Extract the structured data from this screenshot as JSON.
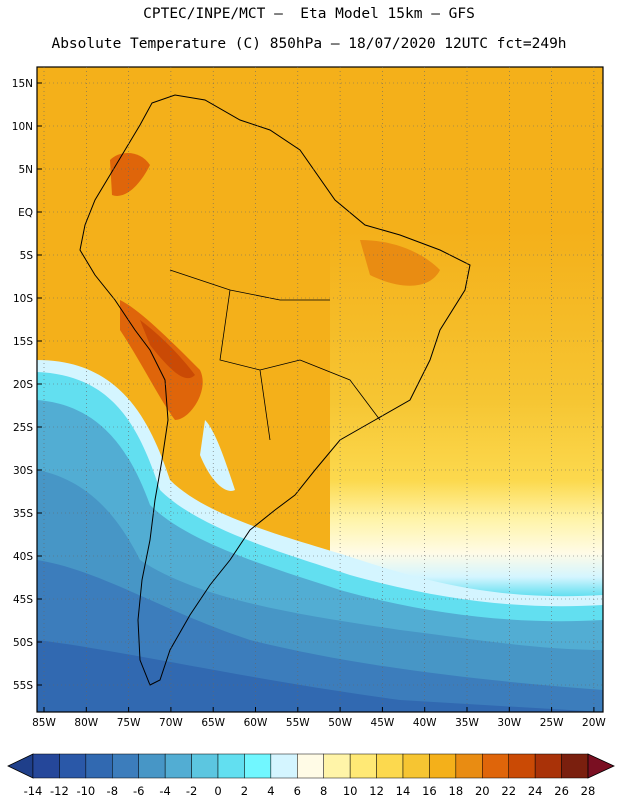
{
  "title_line1": "CPTEC/INPE/MCT –  Eta Model 15km – GFS",
  "title_line2": "Absolute Temperature (C) 850hPa – 18/07/2020 12UTC fct=249h",
  "map": {
    "lat_labels": [
      "15N",
      "10N",
      "5N",
      "EQ",
      "5S",
      "10S",
      "15S",
      "20S",
      "25S",
      "30S",
      "35S",
      "40S",
      "45S",
      "50S",
      "55S"
    ],
    "lon_labels": [
      "85W",
      "80W",
      "75W",
      "70W",
      "65W",
      "60W",
      "55W",
      "50W",
      "45W",
      "40W",
      "35W",
      "30W",
      "25W",
      "20W"
    ],
    "colorbar_labels": [
      "-14",
      "-12",
      "-10",
      "-8",
      "-6",
      "-4",
      "-2",
      "0",
      "2",
      "4",
      "6",
      "8",
      "10",
      "12",
      "14",
      "16",
      "18",
      "20",
      "22",
      "24",
      "26",
      "28"
    ],
    "colors": {
      "under": "#1f3f8a",
      "bins": [
        "#25479a",
        "#2a58a8",
        "#3169b1",
        "#3c7dbc",
        "#4796c6",
        "#52add3",
        "#5cc6e0",
        "#62dff0",
        "#71f7ff",
        "#d4f5ff",
        "#fffbe6",
        "#fff4a8",
        "#ffe975",
        "#fcd94e",
        "#f6c532",
        "#f4b01a",
        "#e98c12",
        "#df650a",
        "#ca4a05",
        "#a93208",
        "#7a1f0e"
      ],
      "over": "#7a0f22"
    }
  }
}
